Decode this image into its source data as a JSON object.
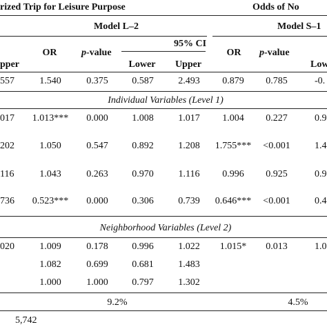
{
  "header": {
    "title_left": "rized Trip for Leisure Purpose",
    "title_right": "Odds of No",
    "model_l2": "Model L–2",
    "model_s1": "Model S–1"
  },
  "columns": {
    "or": "OR",
    "p_value_p": "p",
    "p_value_rest": "-value",
    "ci": "95% CI",
    "lower": "Lower",
    "upper": "Upper",
    "upper_partial": "pper",
    "lower_partial": "Low"
  },
  "sections": {
    "individual": "Individual Variables (Level 1)",
    "neighborhood": "Neighborhood Variables (Level 2)"
  },
  "rows": [
    [
      "557",
      "1.540",
      "0.375",
      "0.587",
      "2.493",
      "0.879",
      "0.785",
      "-0."
    ],
    [
      "017",
      "1.013***",
      "0.000",
      "1.008",
      "1.017",
      "1.004",
      "0.227",
      "0.9"
    ],
    [
      "202",
      "1.050",
      "0.547",
      "0.892",
      "1.208",
      "1.755***",
      "<0.001",
      "1.4"
    ],
    [
      "116",
      "1.043",
      "0.263",
      "0.970",
      "1.116",
      "0.996",
      "0.925",
      "0.9"
    ],
    [
      "736",
      "0.523***",
      "0.000",
      "0.306",
      "0.739",
      "0.646***",
      "<0.001",
      "0.4"
    ],
    [
      "020",
      "1.009",
      "0.178",
      "0.996",
      "1.022",
      "1.015*",
      "0.013",
      "1.0"
    ],
    [
      "",
      "1.082",
      "0.699",
      "0.681",
      "1.483",
      "",
      "",
      ""
    ],
    [
      "",
      "1.000",
      "1.000",
      "0.797",
      "1.302",
      "",
      "",
      ""
    ]
  ],
  "footer": {
    "pct_l2": "9.2%",
    "pct_s1": "4.5%",
    "n": "5,742"
  }
}
